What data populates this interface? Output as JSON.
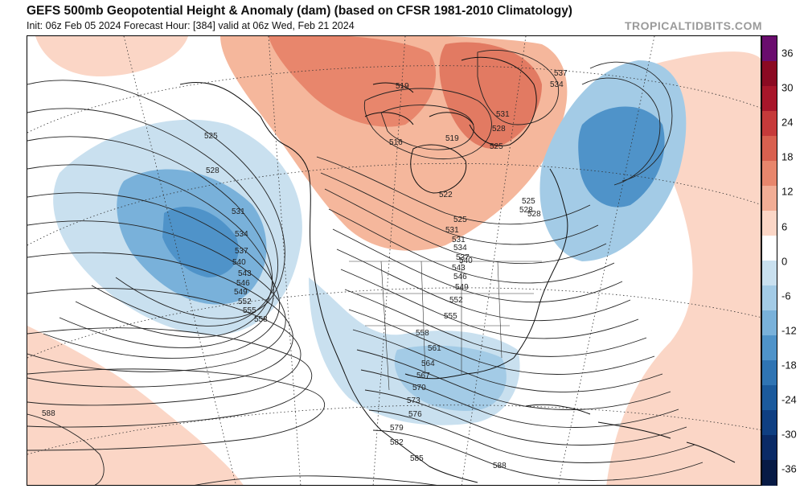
{
  "header": {
    "title": "GEFS 500mb Geopotential Height & Anomaly (dam) (based on CFSR 1981-2010 Climatology)",
    "subtitle": "Init: 06z Feb 05 2024   Forecast Hour: [384]   valid at 06z Wed, Feb 21 2024",
    "credit": "TROPICALTIDBITS.COM"
  },
  "colorbar": {
    "ticks": [
      "36",
      "30",
      "24",
      "18",
      "12",
      "6",
      "0",
      "-6",
      "-12",
      "-18",
      "-24",
      "-30",
      "-36"
    ],
    "colors": [
      "#6a0d6e",
      "#8b0a22",
      "#a8162a",
      "#c63a3a",
      "#d9604f",
      "#e8866c",
      "#f2ad95",
      "#fbd6c6",
      "#ffffff",
      "#c9e0ef",
      "#a3cbe6",
      "#79b1da",
      "#4f93c9",
      "#2f74b3",
      "#1b5a9c",
      "#0f3f82",
      "#0a2a66",
      "#071a45"
    ]
  },
  "contour_labels": [
    {
      "id": "l525a",
      "text": "525"
    },
    {
      "id": "l528a",
      "text": "528"
    },
    {
      "id": "l531a",
      "text": "531"
    },
    {
      "id": "l534a",
      "text": "534"
    },
    {
      "id": "l537a",
      "text": "537"
    },
    {
      "id": "l540a",
      "text": "540"
    },
    {
      "id": "l543a",
      "text": "543"
    },
    {
      "id": "l546a",
      "text": "546"
    },
    {
      "id": "l549a",
      "text": "549"
    },
    {
      "id": "l552a",
      "text": "552"
    },
    {
      "id": "l555a",
      "text": "555"
    },
    {
      "id": "l558a",
      "text": "558"
    },
    {
      "id": "l519",
      "text": "519"
    },
    {
      "id": "l516",
      "text": "516"
    },
    {
      "id": "l519b",
      "text": "519"
    },
    {
      "id": "l522",
      "text": "522"
    },
    {
      "id": "l525b",
      "text": "525"
    },
    {
      "id": "l528b",
      "text": "528"
    },
    {
      "id": "l531b",
      "text": "531"
    },
    {
      "id": "l534b",
      "text": "534"
    },
    {
      "id": "l537b",
      "text": "537"
    },
    {
      "id": "l531c",
      "text": "531"
    },
    {
      "id": "l528c",
      "text": "528"
    },
    {
      "id": "l525c",
      "text": "525"
    },
    {
      "id": "l525d",
      "text": "525"
    },
    {
      "id": "l528d",
      "text": "528"
    },
    {
      "id": "l531d",
      "text": "531"
    },
    {
      "id": "l534d",
      "text": "534"
    },
    {
      "id": "l537d",
      "text": "537"
    },
    {
      "id": "l540d",
      "text": "540"
    },
    {
      "id": "l543d",
      "text": "543"
    },
    {
      "id": "l546d",
      "text": "546"
    },
    {
      "id": "l549d",
      "text": "549"
    },
    {
      "id": "l552d",
      "text": "552"
    },
    {
      "id": "l555d",
      "text": "555"
    },
    {
      "id": "l558d",
      "text": "558"
    },
    {
      "id": "l561d",
      "text": "561"
    },
    {
      "id": "l564d",
      "text": "564"
    },
    {
      "id": "l567d",
      "text": "567"
    },
    {
      "id": "l570d",
      "text": "570"
    },
    {
      "id": "l573d",
      "text": "573"
    },
    {
      "id": "l576d",
      "text": "576"
    },
    {
      "id": "l579d",
      "text": "579"
    },
    {
      "id": "l582d",
      "text": "582"
    },
    {
      "id": "l585d",
      "text": "585"
    },
    {
      "id": "l588w",
      "text": "588"
    },
    {
      "id": "l588s",
      "text": "588"
    }
  ]
}
